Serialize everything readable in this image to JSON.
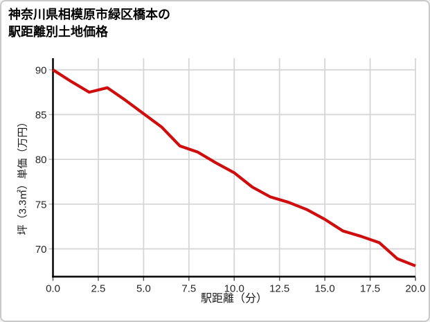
{
  "card": {
    "title_lines": [
      "神奈川県相模原市緑区橋本の",
      "駅距離別土地価格"
    ]
  },
  "chart_data": {
    "type": "line",
    "title": "神奈川県相模原市緑区橋本の駅距離別土地価格",
    "xlabel": "駅距離（分）",
    "ylabel": "坪（3.3㎡）単価（万円）",
    "x": [
      0,
      1,
      2,
      3,
      4,
      5,
      6,
      7,
      8,
      9,
      10,
      11,
      12,
      13,
      14,
      15,
      16,
      17,
      18,
      19,
      20
    ],
    "values": [
      90.0,
      88.7,
      87.5,
      88.0,
      86.6,
      85.1,
      83.6,
      81.5,
      80.8,
      79.6,
      78.5,
      76.9,
      75.8,
      75.2,
      74.4,
      73.3,
      72.0,
      71.4,
      70.7,
      68.9,
      68.1
    ],
    "xticks": {
      "values": [
        0,
        2.5,
        5,
        7.5,
        10,
        12.5,
        15,
        17.5,
        20
      ],
      "labels": [
        "0.0",
        "2.5",
        "5.0",
        "7.5",
        "10.0",
        "12.5",
        "15.0",
        "17.5",
        "20.0"
      ]
    },
    "yticks": {
      "values": [
        70,
        75,
        80,
        85,
        90
      ],
      "labels": [
        "70",
        "75",
        "80",
        "85",
        "90"
      ]
    },
    "xlim": [
      0,
      20
    ],
    "ylim": [
      66.9,
      91.3
    ],
    "grid": true,
    "legend": false
  },
  "colors": {
    "line": "#cf0d0d",
    "grid": "#d6d6d6",
    "spine": "#000000",
    "x_tick_mark": "#555555",
    "y_tick_mark": "#bbbbbb",
    "tick_label": "#262626",
    "card_border": "#c9c9c9",
    "background": "#ffffff"
  }
}
